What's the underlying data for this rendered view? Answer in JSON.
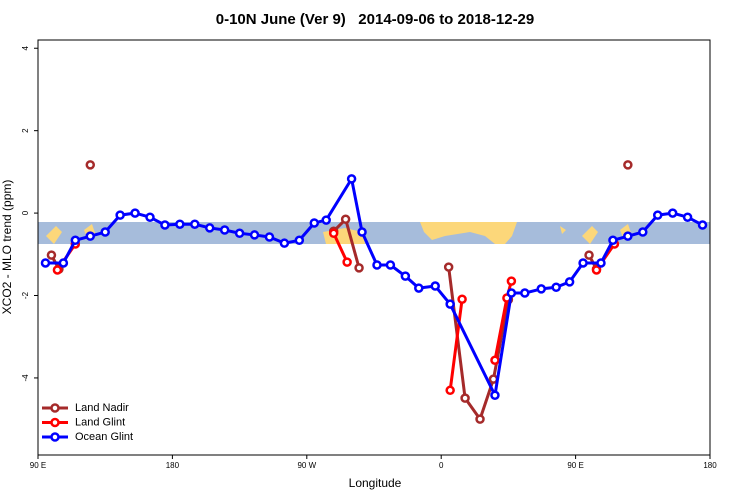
{
  "chart_data": {
    "type": "line",
    "title": "0-10N June (Ver 9)   2014-09-06 to 2018-12-29",
    "x_label": "Longitude",
    "y_label": "XCO2 - MLO trend (ppm)",
    "xlim": [
      90,
      540
    ],
    "ylim": [
      -5.87,
      4.2
    ],
    "xticks": [
      {
        "value": 90,
        "label": "90 E"
      },
      {
        "value": 180,
        "label": "180"
      },
      {
        "value": 270,
        "label": "90 W"
      },
      {
        "value": 360,
        "label": "0"
      },
      {
        "value": 450,
        "label": "90 E"
      },
      {
        "value": 540,
        "label": "180"
      }
    ],
    "yticks": [
      -4,
      -2,
      0,
      2,
      4
    ],
    "legend": "bottom-left",
    "series": [
      {
        "name": "Land Nadir",
        "color": "#a52a2a",
        "x": [
          99,
          104,
          115,
          125,
          135,
          288,
          296,
          305,
          315,
          365,
          376,
          386,
          395,
          405,
          450,
          459,
          464,
          475,
          485
        ],
        "values": [
          -1.02,
          -1.36,
          null,
          1.17,
          null,
          -0.44,
          -0.15,
          -1.33,
          null,
          -1.31,
          -4.49,
          -5.0,
          -4.03,
          -2.1,
          null,
          -1.02,
          -1.36,
          null,
          1.17
        ]
      },
      {
        "name": "Land Glint",
        "color": "#ff0000",
        "x": [
          103,
          115,
          125,
          288,
          297,
          305,
          366,
          374,
          385,
          396,
          404,
          407,
          450,
          464,
          476
        ],
        "values": [
          -1.38,
          -0.75,
          null,
          -0.49,
          -1.19,
          null,
          -4.3,
          -2.09,
          null,
          -3.57,
          -2.06,
          -1.65,
          null,
          -1.38,
          -0.75
        ]
      },
      {
        "name": "Ocean Glint",
        "color": "#0000ff",
        "x": [
          95,
          107,
          115,
          125,
          135,
          145,
          155,
          165,
          175,
          185,
          195,
          205,
          215,
          225,
          235,
          245,
          255,
          265,
          275,
          283,
          300,
          307,
          317,
          326,
          336,
          345,
          356,
          366,
          396,
          407,
          416,
          427,
          437,
          446,
          455,
          467,
          475,
          485,
          495,
          505,
          515,
          525,
          535
        ],
        "values": [
          -1.21,
          -1.21,
          -0.66,
          -0.56,
          -0.46,
          -0.05,
          0.0,
          -0.1,
          -0.29,
          -0.27,
          -0.27,
          -0.36,
          -0.41,
          -0.49,
          -0.53,
          -0.58,
          -0.73,
          -0.66,
          -0.24,
          -0.17,
          0.83,
          -0.46,
          -1.26,
          -1.26,
          -1.53,
          -1.82,
          -1.77,
          -2.21,
          -4.42,
          -1.94,
          -1.94,
          -1.84,
          -1.8,
          -1.67,
          -1.21,
          -1.21,
          -0.66,
          -0.56,
          -0.46,
          -0.05,
          0.0,
          -0.1,
          -0.29
        ]
      }
    ]
  }
}
